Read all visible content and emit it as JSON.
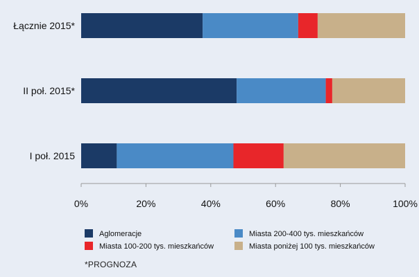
{
  "chart_data": {
    "type": "bar",
    "orientation": "horizontal",
    "stacked": true,
    "categories": [
      "Łącznie 2015*",
      "II poł. 2015*",
      "I poł. 2015"
    ],
    "series": [
      {
        "name": "Aglomeracje",
        "color": "#1b3a66",
        "values": [
          37.5,
          48.0,
          11.0
        ]
      },
      {
        "name": "Miasta 200-400 tys. mieszkańców",
        "color": "#4a8ac6",
        "values": [
          29.5,
          27.5,
          36.0
        ]
      },
      {
        "name": "Miasta 100-200 tys. mieszkańców",
        "color": "#e8262a",
        "values": [
          6.0,
          2.0,
          15.5
        ]
      },
      {
        "name": "Miasta poniżej 100 tys. mieszkańców",
        "color": "#c8b08a",
        "values": [
          27.0,
          22.5,
          37.5
        ]
      }
    ],
    "xlim": [
      0,
      100
    ],
    "xticks": [
      "0%",
      "20%",
      "40%",
      "60%",
      "80%",
      "100%"
    ],
    "grid": false,
    "legend_position": "bottom"
  },
  "footnote": "*PROGNOZA"
}
